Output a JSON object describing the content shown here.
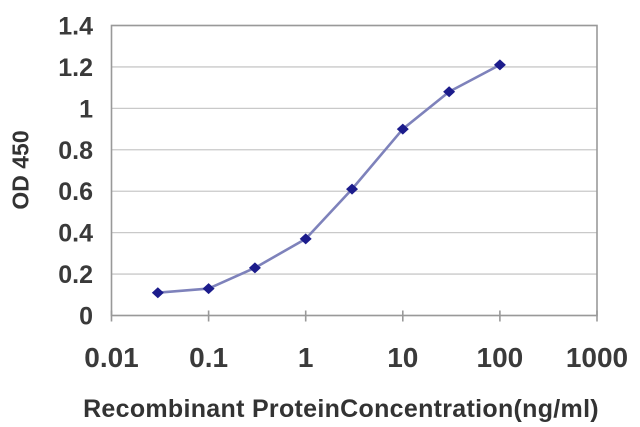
{
  "chart_data": {
    "type": "line",
    "title": "",
    "xlabel": "Recombinant ProteinConcentration(ng/ml)",
    "ylabel": "OD 450",
    "xscale": "log",
    "xlim": [
      0.01,
      1000
    ],
    "ylim": [
      0,
      1.4
    ],
    "grid": "horizontal-only",
    "legend": "none",
    "series": [
      {
        "x": [
          0.03,
          0.1,
          0.3,
          1,
          3,
          10,
          30,
          100
        ],
        "y": [
          0.11,
          0.13,
          0.23,
          0.37,
          0.61,
          0.9,
          1.08,
          1.21
        ],
        "marker": "diamond",
        "line_color": "#7e82bb",
        "marker_color": "#1c1c8c"
      }
    ],
    "xticks": {
      "values": [
        0.01,
        0.1,
        1,
        10,
        100,
        1000
      ],
      "labels": [
        "0.01",
        "0.1",
        "1",
        "10",
        "100",
        "1000"
      ]
    },
    "yticks": {
      "values": [
        0,
        0.2,
        0.4,
        0.6,
        0.8,
        1,
        1.2,
        1.4
      ],
      "labels": [
        "0",
        "0.2",
        "0.4",
        "0.6",
        "0.8",
        "1",
        "1.2",
        "1.4"
      ]
    },
    "colors": {
      "grid": "#c9c9c9",
      "frame": "#999999",
      "text": "#3a3a3a",
      "background": "#ffffff"
    }
  }
}
